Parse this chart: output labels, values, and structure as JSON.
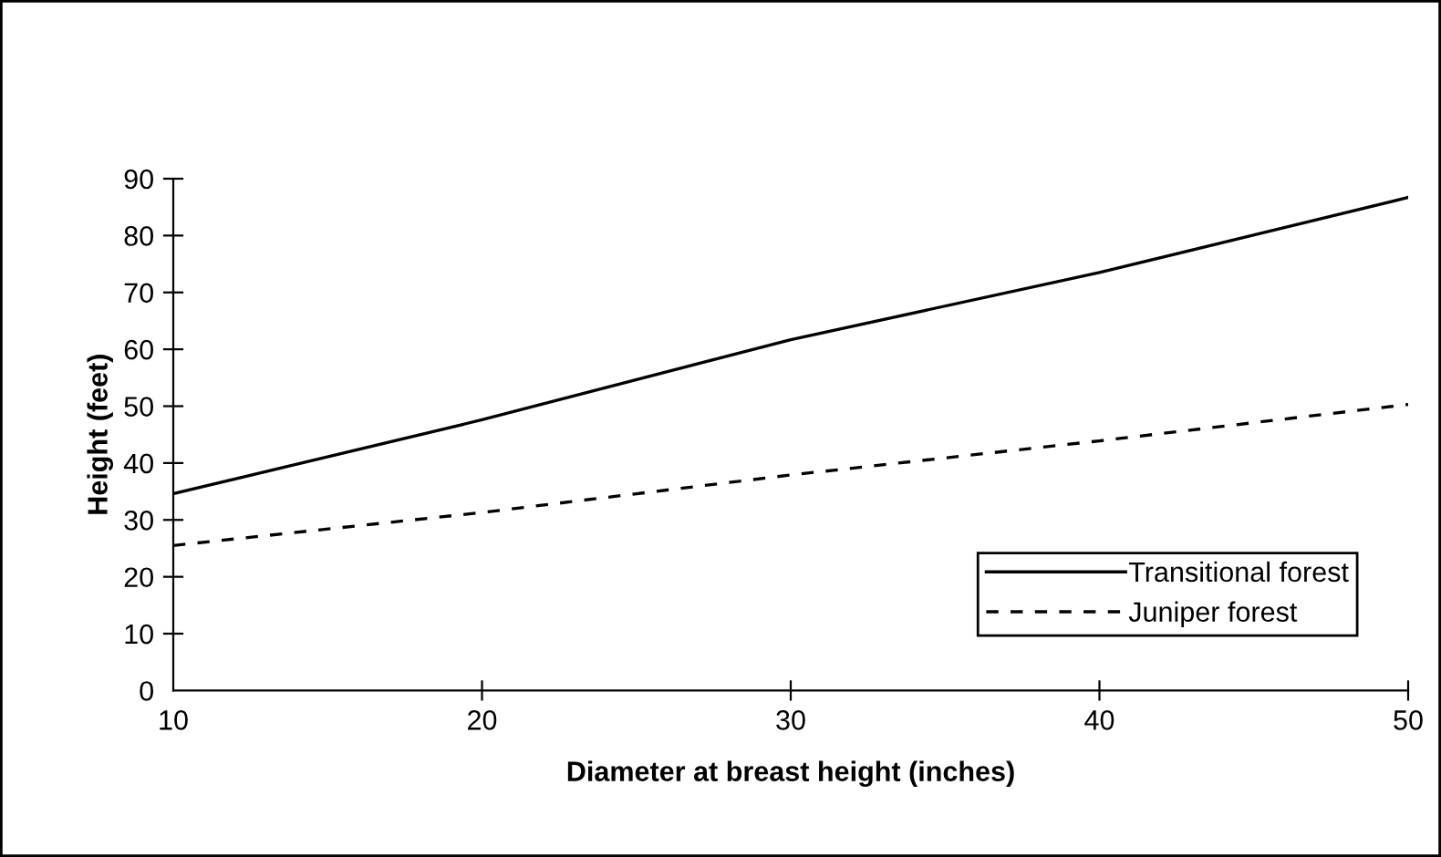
{
  "chart_data": {
    "type": "line",
    "xlabel": "Diameter at breast height (inches)",
    "ylabel": "Height (feet)",
    "x": [
      10,
      20,
      30,
      40,
      50
    ],
    "series": [
      {
        "name": "Transitional forest",
        "color": "#000000",
        "line_style": "solid",
        "values": [
          34.6,
          47.6,
          61.7,
          73.5,
          86.7
        ]
      },
      {
        "name": "Juniper forest",
        "color": "#000000",
        "line_style": "dashed",
        "values": [
          25.5,
          31.3,
          37.9,
          43.9,
          50.3
        ]
      }
    ],
    "xlim": [
      10,
      50
    ],
    "xticks": [
      10,
      20,
      30,
      40,
      50
    ],
    "ylim": [
      0,
      90
    ],
    "yticks": [
      0,
      10,
      20,
      30,
      40,
      50,
      60,
      70,
      80,
      90
    ],
    "grid": false,
    "legend": "bottom right",
    "marker": "none"
  }
}
